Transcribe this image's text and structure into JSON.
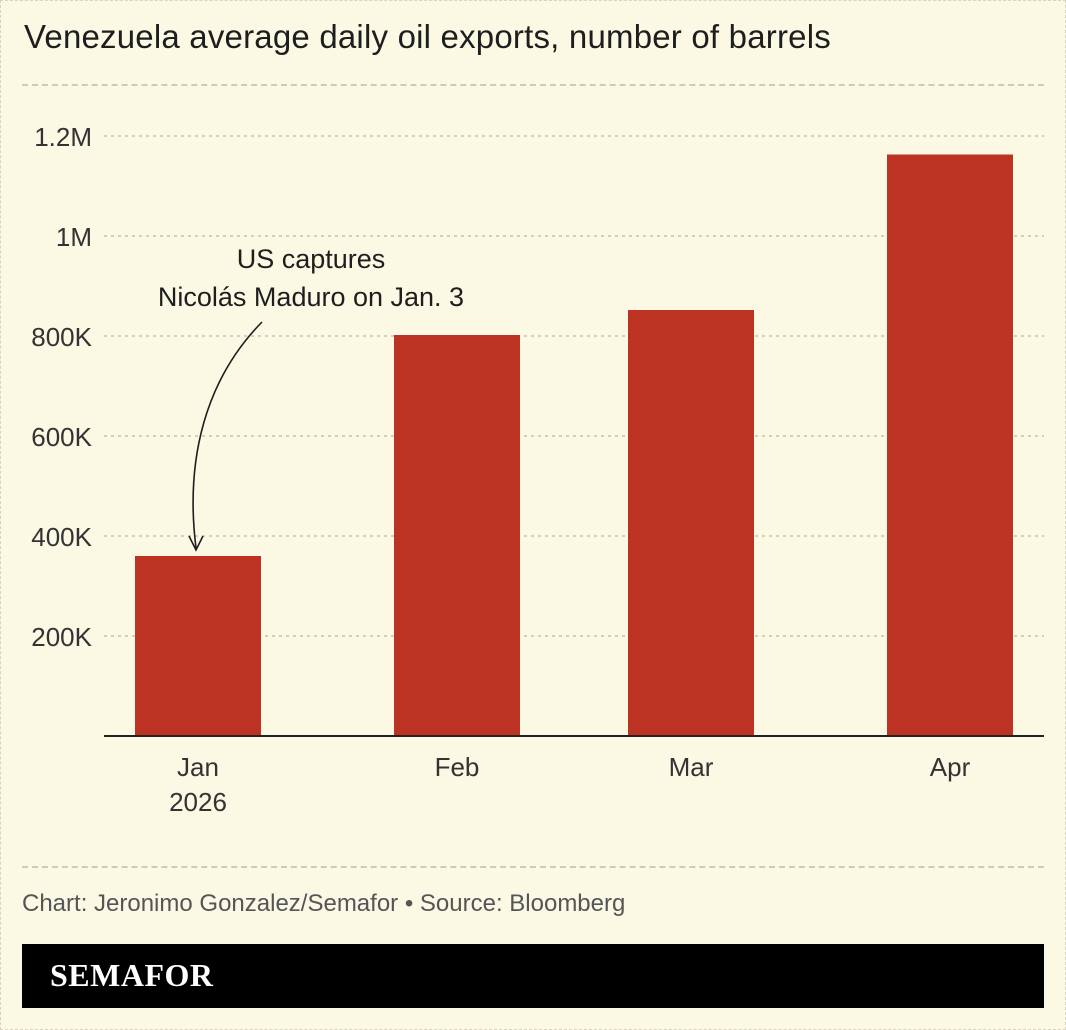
{
  "header": {
    "title": "Venezuela average daily oil exports, number of barrels"
  },
  "chart_data": {
    "type": "bar",
    "title": "Venezuela average daily oil exports, number of barrels",
    "xlabel": "",
    "ylabel": "",
    "categories": [
      "Jan\n2026",
      "Feb",
      "Mar",
      "Apr"
    ],
    "values": [
      360000,
      802000,
      852000,
      1163000
    ],
    "ylim": [
      0,
      1200000
    ],
    "yticks": [
      200000,
      400000,
      600000,
      800000,
      1000000,
      1200000
    ],
    "ytick_labels": [
      "200K",
      "400K",
      "600K",
      "800K",
      "1M",
      "1.2M"
    ],
    "grid": true,
    "bar_color": "#bd3323",
    "annotations": [
      {
        "text": "US captures\nNicolás Maduro on Jan. 3",
        "target_category": "Jan\n2026"
      }
    ]
  },
  "footer": {
    "credit": "Chart: Jeronimo Gonzalez/Semafor • Source: Bloomberg",
    "brand": "SEMAFOR"
  },
  "colors": {
    "background": "#fbf8e4",
    "bar": "#bd3323",
    "brand_bar": "#000000"
  }
}
